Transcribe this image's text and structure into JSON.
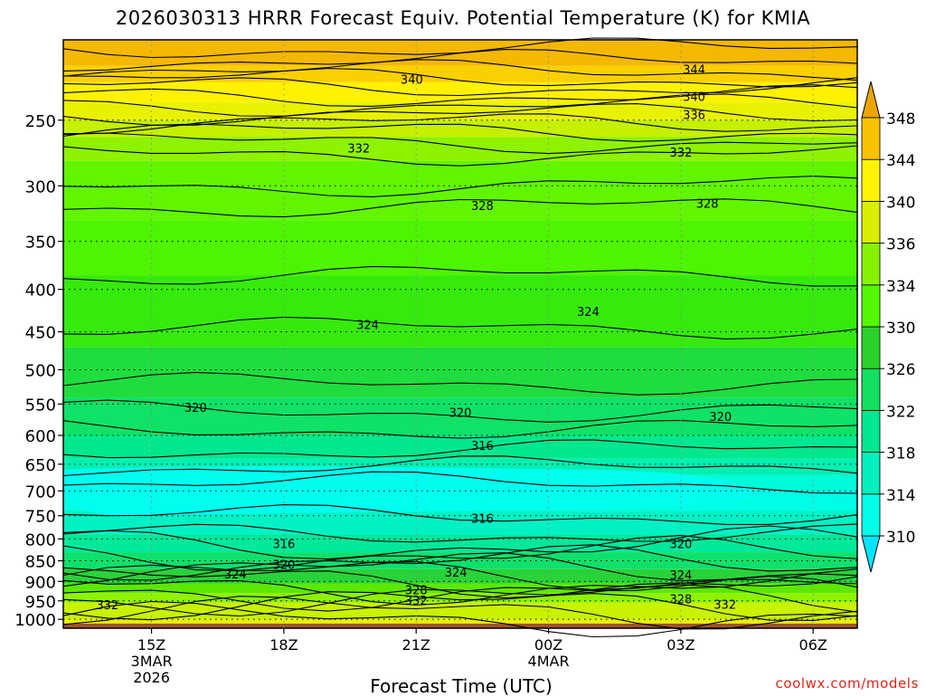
{
  "title": "2026030313 HRRR Forecast Equiv. Potential Temperature (K) for KMIA",
  "xlabel": "Forecast Time (UTC)",
  "credit": "coolwx.com/models",
  "chart_data": {
    "type": "heatmap",
    "title": "2026030313 HRRR Forecast Equiv. Potential Temperature (K) for KMIA",
    "xlabel": "Forecast Time (UTC)",
    "ylabel": "",
    "x_ticks": [
      {
        "label": "15Z",
        "sub": [
          "3MAR",
          "2026"
        ],
        "hour": 2
      },
      {
        "label": "18Z",
        "sub": [],
        "hour": 5
      },
      {
        "label": "21Z",
        "sub": [],
        "hour": 8
      },
      {
        "label": "00Z",
        "sub": [
          "4MAR"
        ],
        "hour": 11
      },
      {
        "label": "03Z",
        "sub": [],
        "hour": 14
      },
      {
        "label": "06Z",
        "sub": [],
        "hour": 17
      }
    ],
    "xlim": [
      0,
      18
    ],
    "y_ticks": [
      250,
      300,
      350,
      400,
      450,
      500,
      550,
      600,
      650,
      700,
      750,
      800,
      850,
      900,
      950,
      1000
    ],
    "ylim": [
      1025,
      200
    ],
    "yscale": "log",
    "colorbar": {
      "labels": [
        310,
        314,
        318,
        322,
        326,
        330,
        334,
        336,
        340,
        344,
        348
      ],
      "colors": [
        "#00e5ff",
        "#00ffe8",
        "#00f0be",
        "#00e890",
        "#11e060",
        "#2ad22a",
        "#54f700",
        "#86f200",
        "#d8ef00",
        "#fff500",
        "#f7c200",
        "#eba500"
      ]
    },
    "contour_labels": [
      {
        "text": "344",
        "x": 14.3,
        "p": 217
      },
      {
        "text": "340",
        "x": 7.9,
        "p": 223
      },
      {
        "text": "340",
        "x": 14.3,
        "p": 234
      },
      {
        "text": "336",
        "x": 14.3,
        "p": 246
      },
      {
        "text": "332",
        "x": 6.7,
        "p": 270
      },
      {
        "text": "332",
        "x": 14.0,
        "p": 273
      },
      {
        "text": "328",
        "x": 9.5,
        "p": 317
      },
      {
        "text": "328",
        "x": 14.6,
        "p": 315
      },
      {
        "text": "324",
        "x": 6.9,
        "p": 441
      },
      {
        "text": "324",
        "x": 11.9,
        "p": 425
      },
      {
        "text": "320",
        "x": 3.0,
        "p": 555
      },
      {
        "text": "320",
        "x": 9.0,
        "p": 563
      },
      {
        "text": "320",
        "x": 14.9,
        "p": 569
      },
      {
        "text": "316",
        "x": 9.5,
        "p": 617
      },
      {
        "text": "316",
        "x": 9.5,
        "p": 755
      },
      {
        "text": "316",
        "x": 5.0,
        "p": 810
      },
      {
        "text": "320",
        "x": 14.0,
        "p": 810
      },
      {
        "text": "320",
        "x": 5.0,
        "p": 858
      },
      {
        "text": "324",
        "x": 3.9,
        "p": 882
      },
      {
        "text": "324",
        "x": 8.9,
        "p": 877
      },
      {
        "text": "324",
        "x": 14.0,
        "p": 884
      },
      {
        "text": "328",
        "x": 8.0,
        "p": 921
      },
      {
        "text": "328",
        "x": 14.0,
        "p": 945
      },
      {
        "text": "332",
        "x": 1.0,
        "p": 960
      },
      {
        "text": "332",
        "x": 8.0,
        "p": 948
      },
      {
        "text": "332",
        "x": 15.0,
        "p": 959
      }
    ],
    "grid": true
  }
}
